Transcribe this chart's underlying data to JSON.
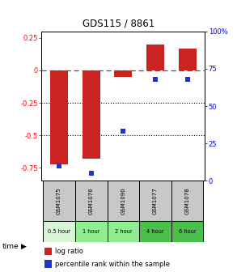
{
  "title": "GDS115 / 8861",
  "samples": [
    "GSM1075",
    "GSM1076",
    "GSM1090",
    "GSM1077",
    "GSM1078"
  ],
  "time_labels": [
    "0.5 hour",
    "1 hour",
    "2 hour",
    "4 hour",
    "6 hour"
  ],
  "time_colors": [
    "#d8f5d8",
    "#90ee90",
    "#90ee90",
    "#4abf4a",
    "#4abf4a"
  ],
  "log_ratios": [
    -0.72,
    -0.68,
    -0.05,
    0.2,
    0.17
  ],
  "percentile_ranks": [
    10,
    5,
    33,
    68,
    68
  ],
  "bar_color": "#cc2222",
  "dot_color": "#2233cc",
  "ylim_left": [
    -0.85,
    0.3
  ],
  "ylim_right": [
    0,
    100
  ],
  "yticks_left": [
    0.25,
    0,
    -0.25,
    -0.5,
    -0.75
  ],
  "yticks_right": [
    100,
    75,
    50,
    25,
    0
  ],
  "dotted_lines": [
    -0.25,
    -0.5
  ],
  "bar_width": 0.55
}
